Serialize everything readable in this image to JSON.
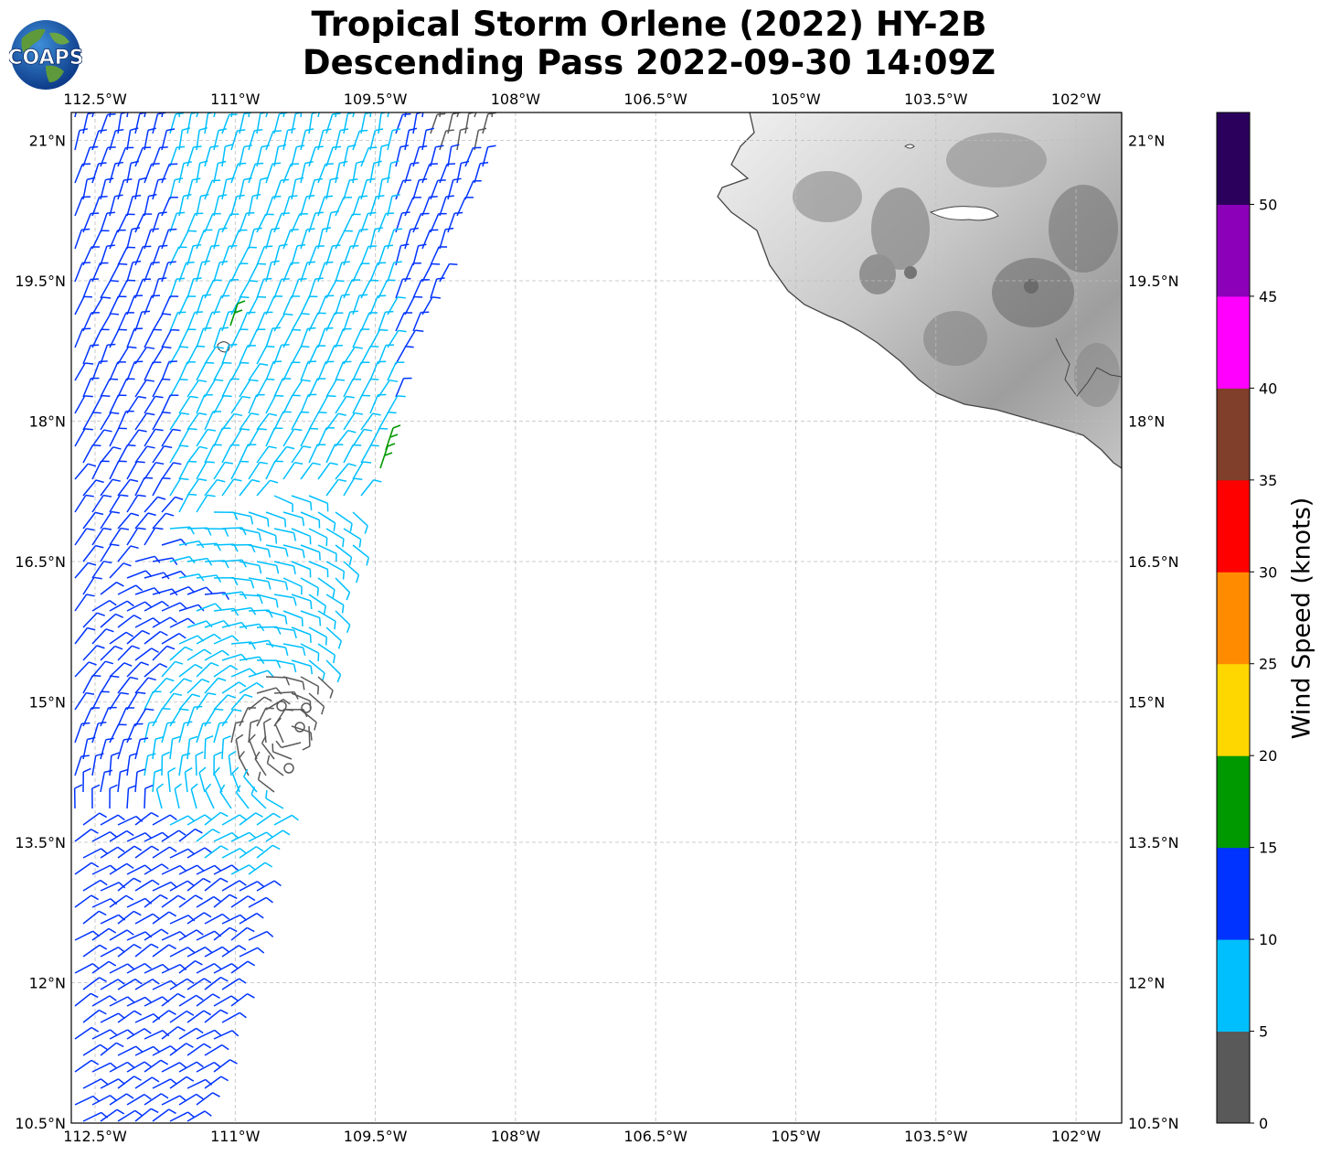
{
  "title": {
    "line1": "Tropical Storm Orlene (2022) HY-2B",
    "line2": "Descending Pass 2022-09-30 14:09Z"
  },
  "logo": {
    "text": "COAPS"
  },
  "map": {
    "lon_labels": [
      "112.5°W",
      "111°W",
      "109.5°W",
      "108°W",
      "106.5°W",
      "105°W",
      "103.5°W",
      "102°W"
    ],
    "lon_values": [
      -112.5,
      -111,
      -109.5,
      -108,
      -106.5,
      -105,
      -103.5,
      -102
    ],
    "lat_labels": [
      "21°N",
      "19.5°N",
      "18°N",
      "16.5°N",
      "15°N",
      "13.5°N",
      "12°N",
      "10.5°N"
    ],
    "lat_values": [
      21,
      19.5,
      18,
      16.5,
      15,
      13.5,
      12,
      10.5
    ],
    "lon_range": [
      -112.75,
      -101.5
    ],
    "lat_range": [
      10.5,
      21.3
    ],
    "land_region": "Mexico (Jalisco / Colima / Michoacán coast)",
    "wind_barbs": "scatterometer wind vectors plotted as barbs along satellite swath"
  },
  "colorbar": {
    "label": "Wind Speed (knots)",
    "ticks": [
      "0",
      "5",
      "10",
      "15",
      "20",
      "25",
      "30",
      "35",
      "40",
      "45",
      "50"
    ],
    "colors": [
      "#595959",
      "#00bfff",
      "#0033ff",
      "#009900",
      "#ffd700",
      "#ff8c00",
      "#ff0000",
      "#7f3f2a",
      "#ff00ff",
      "#8b00b8",
      "#2a005c"
    ]
  }
}
